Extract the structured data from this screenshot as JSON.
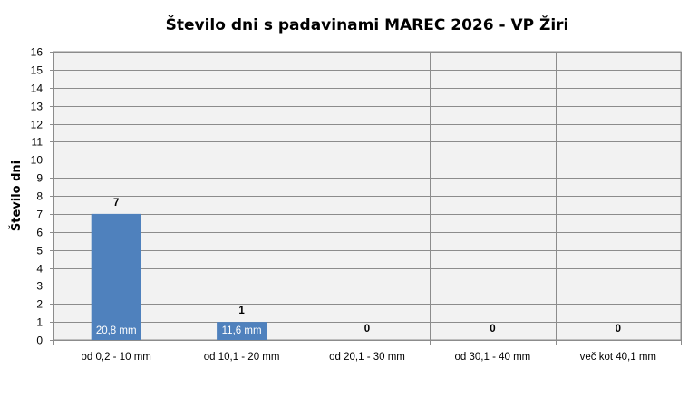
{
  "chart_data": {
    "type": "bar",
    "title": "Število dni s padavinami  MAREC 2026 - VP Žiri",
    "xlabel": "",
    "ylabel": "Število dni",
    "ylim": [
      0,
      16
    ],
    "yticks": [
      "0",
      "1",
      "2",
      "3",
      "4",
      "5",
      "6",
      "7",
      "8",
      "9",
      "10",
      "11",
      "12",
      "13",
      "14",
      "15",
      "16"
    ],
    "grid": true,
    "legend": "none",
    "categories": [
      "od 0,2 - 10 mm",
      "od 10,1 - 20 mm",
      "od 20,1 - 30 mm",
      "od 30,1 - 40 mm",
      "več kot 40,1 mm"
    ],
    "values": [
      7,
      1,
      0,
      0,
      0
    ],
    "value_labels": [
      "7",
      "1",
      "0",
      "0",
      "0"
    ],
    "bar_labels": [
      "20,8 mm",
      "11,6 mm",
      "",
      "",
      ""
    ],
    "colors": {
      "bar": "#4f81bd",
      "plot_bg": "#f2f2f2",
      "grid": "#8c8c8c"
    }
  }
}
